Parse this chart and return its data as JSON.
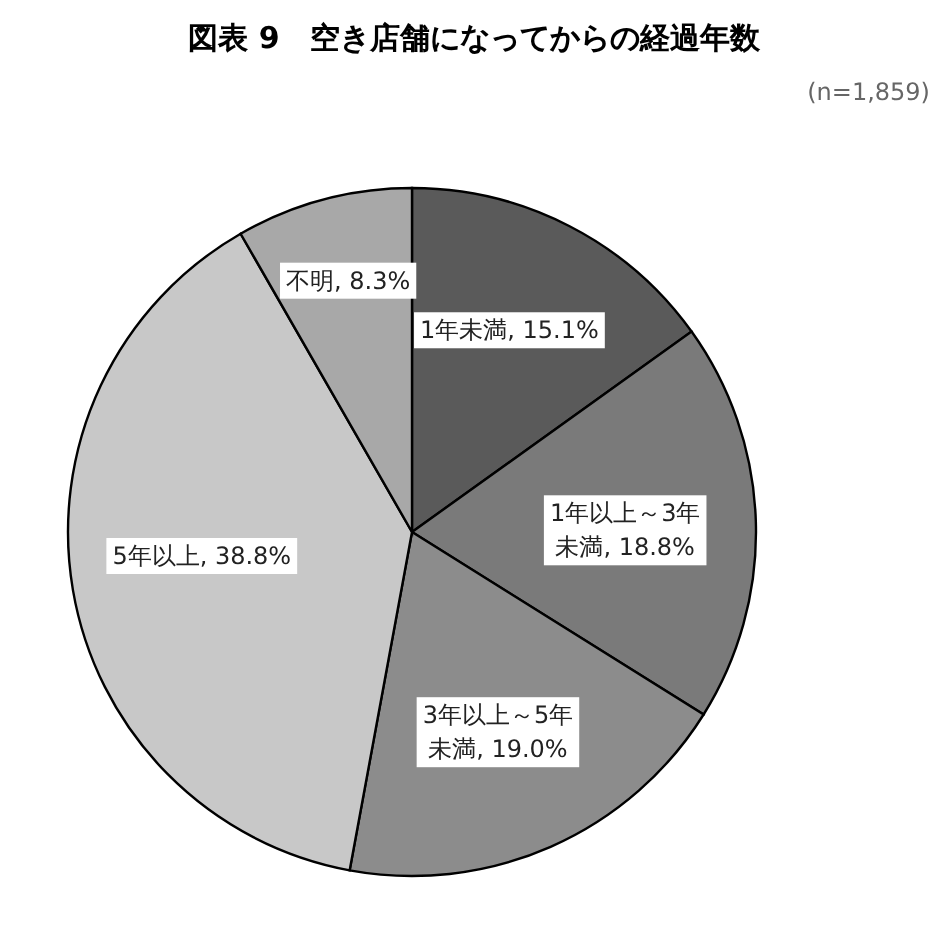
{
  "chart_data": {
    "type": "pie",
    "title": "図表 9　空き店舗になってからの経過年数",
    "annotations": [
      "(n=1,859)"
    ],
    "categories": [
      "1年未満",
      "1年以上～3年未満",
      "3年以上～5年未満",
      "5年以上",
      "不明"
    ],
    "values": [
      15.1,
      18.8,
      19.0,
      38.8,
      8.3
    ],
    "value_labels": [
      "15.1%",
      "18.8%",
      "19.0%",
      "38.8%",
      "8.3%"
    ],
    "colors": [
      "#5a5a5a",
      "#7a7a7a",
      "#8c8c8c",
      "#c8c8c8",
      "#a8a8a8"
    ]
  }
}
